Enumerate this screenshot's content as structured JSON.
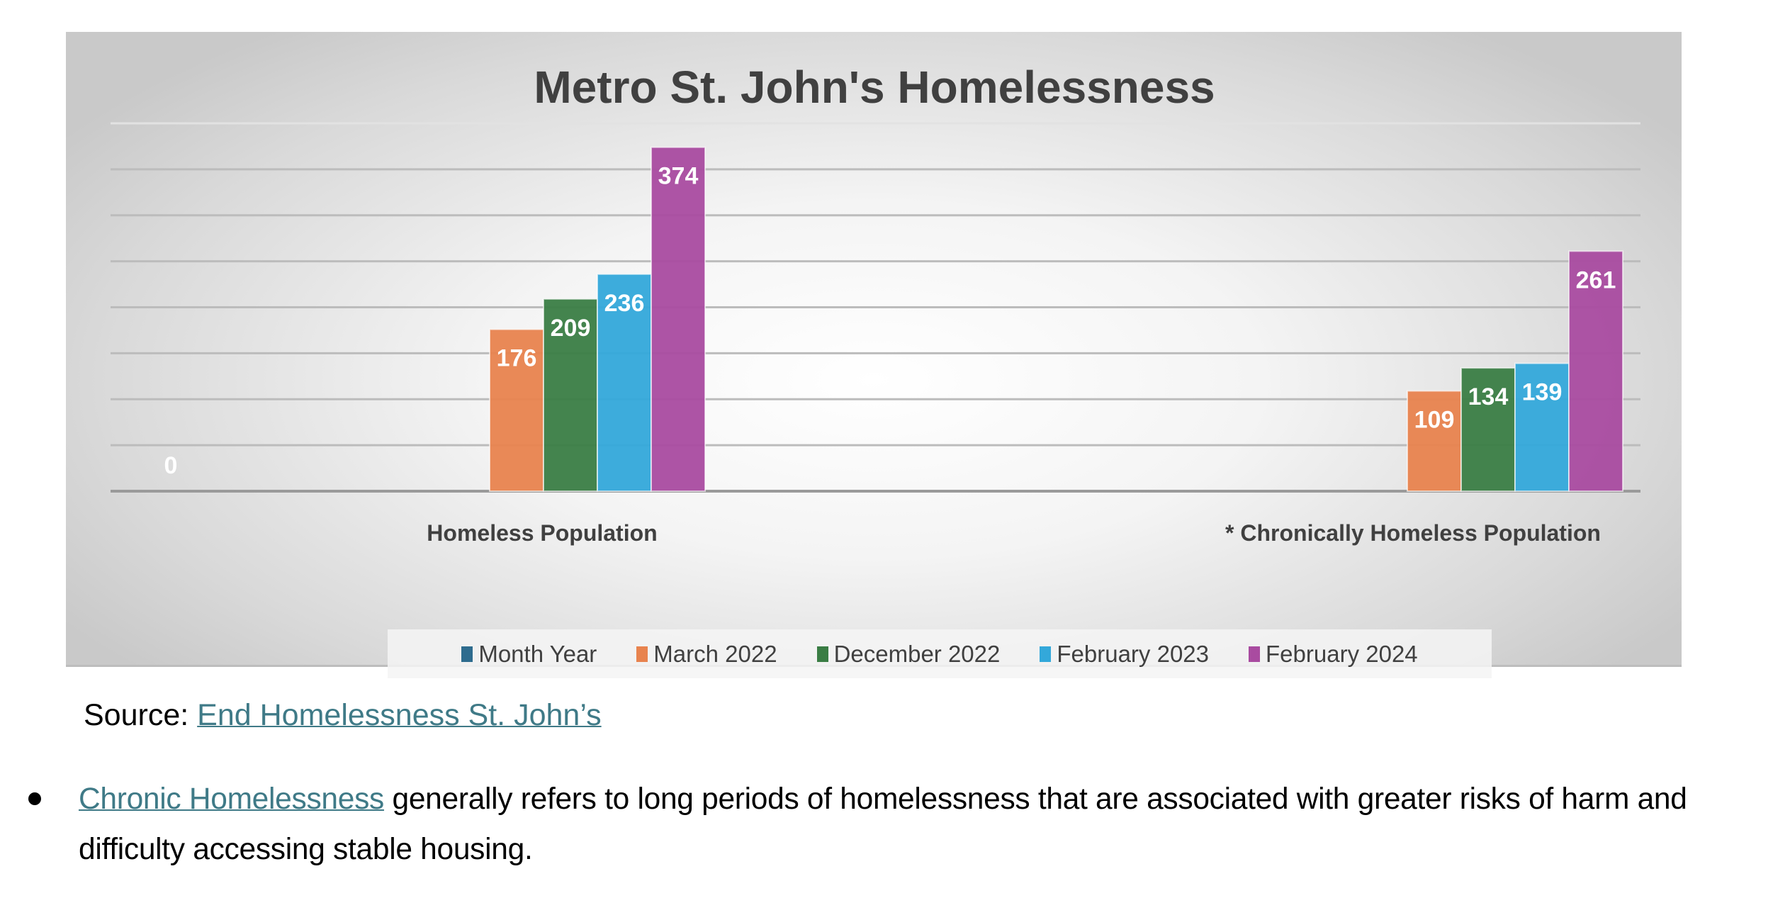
{
  "chart_data": {
    "type": "bar",
    "title": "Metro St. John's Homelessness",
    "categories": [
      "Homeless Population",
      "* Chronically Homeless Population"
    ],
    "series": [
      {
        "name": "Month Year",
        "color": "#2e6c8e",
        "values": [
          0,
          null
        ]
      },
      {
        "name": "March 2022",
        "color": "#e8834e",
        "values": [
          176,
          109
        ]
      },
      {
        "name": "December 2022",
        "color": "#3a7d44",
        "values": [
          209,
          134
        ]
      },
      {
        "name": "February 2023",
        "color": "#33a8da",
        "values": [
          236,
          139
        ]
      },
      {
        "name": "February 2024",
        "color": "#a94ba0",
        "values": [
          374,
          261
        ]
      }
    ],
    "ylim": [
      0,
      400
    ],
    "ytick_step": 50,
    "grid": true,
    "yaxis_labels_shown": false,
    "legend_position": "bottom",
    "xlabel": "",
    "ylabel": ""
  },
  "source": {
    "prefix": "Source:",
    "link_text": "End Homelessness St. John’s"
  },
  "bullet": {
    "link_text": "Chronic Homelessness",
    "text": " generally refers to long periods of homelessness that are associated with greater risks of harm and difficulty accessing stable housing."
  }
}
